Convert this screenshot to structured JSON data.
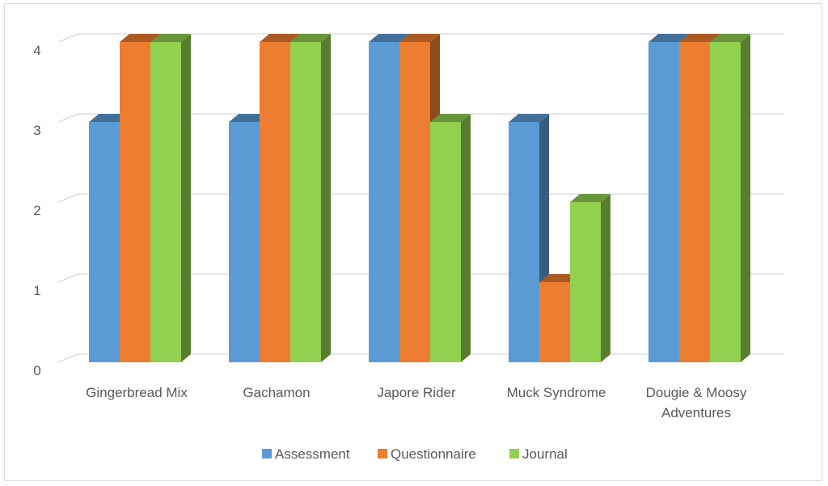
{
  "colors": {
    "assessment": "#5B9BD5",
    "questionnaire": "#ED7D31",
    "journal": "#92D050",
    "grid": "#d9d9d9",
    "text": "#595959"
  },
  "chart_data": {
    "type": "bar",
    "style": "3d-clustered-column",
    "title": "",
    "xlabel": "",
    "ylabel": "",
    "categories": [
      [
        "Gingerbread Mix"
      ],
      [
        "Gachamon"
      ],
      [
        "Japore Rider"
      ],
      [
        "Muck Syndrome"
      ],
      [
        "Dougie & Moosy",
        "Adventures"
      ]
    ],
    "series": [
      {
        "name": "Assessment",
        "color": "#5B9BD5",
        "values": [
          3,
          3,
          4,
          3,
          4
        ]
      },
      {
        "name": "Questionnaire",
        "color": "#ED7D31",
        "values": [
          4,
          4,
          4,
          1,
          4
        ]
      },
      {
        "name": "Journal",
        "color": "#92D050",
        "values": [
          4,
          4,
          3,
          2,
          4
        ]
      }
    ],
    "ylim": [
      0,
      4
    ],
    "yticks": [
      "0",
      "1",
      "2",
      "3",
      "4"
    ],
    "grid": true,
    "legend_position": "bottom"
  }
}
